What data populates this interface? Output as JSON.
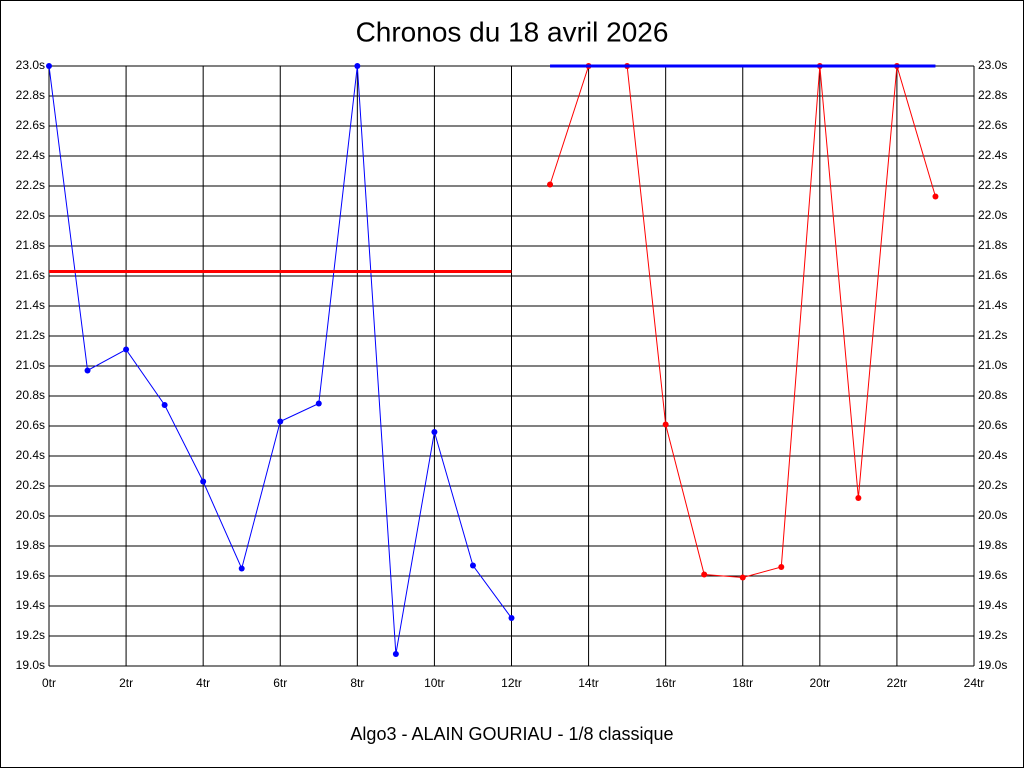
{
  "chart_data": {
    "type": "line",
    "title": "Chronos du 18 avril 2026",
    "xlabel": "Algo3 - ALAIN GOURIAU - 1/8 classique",
    "xlim": [
      0,
      24
    ],
    "xticks": [
      {
        "value": 0,
        "label": "0tr"
      },
      {
        "value": 2,
        "label": "2tr"
      },
      {
        "value": 4,
        "label": "4tr"
      },
      {
        "value": 6,
        "label": "6tr"
      },
      {
        "value": 8,
        "label": "8tr"
      },
      {
        "value": 10,
        "label": "10tr"
      },
      {
        "value": 12,
        "label": "12tr"
      },
      {
        "value": 14,
        "label": "14tr"
      },
      {
        "value": 16,
        "label": "16tr"
      },
      {
        "value": 18,
        "label": "18tr"
      },
      {
        "value": 20,
        "label": "20tr"
      },
      {
        "value": 22,
        "label": "22tr"
      },
      {
        "value": 24,
        "label": "24tr"
      }
    ],
    "ylim": [
      19,
      23
    ],
    "yticks": [
      {
        "value": 19,
        "label": "19.0s"
      },
      {
        "value": 19.2,
        "label": "19.2s"
      },
      {
        "value": 19.4,
        "label": "19.4s"
      },
      {
        "value": 19.6,
        "label": "19.6s"
      },
      {
        "value": 19.8,
        "label": "19.8s"
      },
      {
        "value": 20,
        "label": "20.0s"
      },
      {
        "value": 20.2,
        "label": "20.2s"
      },
      {
        "value": 20.4,
        "label": "20.4s"
      },
      {
        "value": 20.6,
        "label": "20.6s"
      },
      {
        "value": 20.8,
        "label": "20.8s"
      },
      {
        "value": 21,
        "label": "21.0s"
      },
      {
        "value": 21.2,
        "label": "21.2s"
      },
      {
        "value": 21.4,
        "label": "21.4s"
      },
      {
        "value": 21.6,
        "label": "21.6s"
      },
      {
        "value": 21.8,
        "label": "21.8s"
      },
      {
        "value": 22,
        "label": "22.0s"
      },
      {
        "value": 22.2,
        "label": "22.2s"
      },
      {
        "value": 22.4,
        "label": "22.4s"
      },
      {
        "value": 22.6,
        "label": "22.6s"
      },
      {
        "value": 22.8,
        "label": "22.8s"
      },
      {
        "value": 23,
        "label": "23.0s"
      }
    ],
    "grid": true,
    "right_axis": true,
    "series": [
      {
        "color": "#0000ff",
        "width": 1,
        "markers": true,
        "x": [
          0,
          1,
          2,
          3,
          4,
          5,
          6,
          7,
          8,
          9,
          10,
          11,
          12
        ],
        "values": [
          23.0,
          20.97,
          21.11,
          20.74,
          20.23,
          19.65,
          20.63,
          20.75,
          23.0,
          19.08,
          20.56,
          19.67,
          19.32
        ]
      },
      {
        "color": "#ff0000",
        "width": 1,
        "markers": true,
        "x": [
          13,
          14,
          15,
          16,
          17,
          18,
          19,
          20,
          21,
          22,
          23
        ],
        "values": [
          22.21,
          23.0,
          23.0,
          20.61,
          19.61,
          19.59,
          19.66,
          23.0,
          20.12,
          23.0,
          22.13
        ]
      },
      {
        "color": "#ff0000",
        "width": 3,
        "markers": false,
        "x": [
          0,
          12
        ],
        "values": [
          21.63,
          21.63
        ]
      },
      {
        "color": "#0000ff",
        "width": 3,
        "markers": false,
        "x": [
          13,
          23
        ],
        "values": [
          23.0,
          23.0
        ]
      }
    ]
  }
}
